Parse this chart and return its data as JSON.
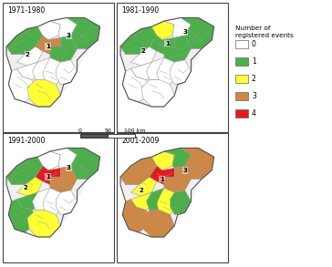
{
  "legend_title": "Number of\nregistered events",
  "legend_items": [
    {
      "value": "0",
      "color": "#ffffff"
    },
    {
      "value": "1",
      "color": "#4daf4a"
    },
    {
      "value": "2",
      "color": "#ffff33"
    },
    {
      "value": "3",
      "color": "#cc8844"
    },
    {
      "value": "4",
      "color": "#e41a1c"
    }
  ],
  "colors": {
    "0": "#ffffff",
    "1": "#4daf4a",
    "2": "#ffff33",
    "3": "#cc8844",
    "4": "#e41a1c",
    "edge": "#999999",
    "outer_edge": "#555555"
  },
  "panel_titles": [
    "1971-1980",
    "1981-1990",
    "1991-2000",
    "2001-2009"
  ],
  "period_colors": [
    [
      "1",
      "1",
      "0",
      "0",
      "3",
      "1",
      "0",
      "0",
      "0",
      "0",
      "0",
      "0",
      "2",
      "1",
      "0",
      "0",
      "1",
      "0",
      "0",
      "0",
      "0",
      "0",
      "0",
      "2",
      "0",
      "0",
      "0",
      "0",
      "0",
      "0"
    ],
    [
      "1",
      "1",
      "0",
      "0",
      "1",
      "1",
      "0",
      "0",
      "0",
      "0",
      "0",
      "0",
      "2",
      "1",
      "0",
      "0",
      "0",
      "0",
      "0",
      "0",
      "0",
      "0",
      "0",
      "1",
      "0",
      "0",
      "0",
      "0",
      "0",
      "0"
    ],
    [
      "4",
      "1",
      "0",
      "0",
      "1",
      "3",
      "0",
      "0",
      "1",
      "0",
      "0",
      "0",
      "2",
      "3",
      "0",
      "0",
      "2",
      "0",
      "0",
      "0",
      "0",
      "2",
      "0",
      "0",
      "0",
      "2",
      "0",
      "1",
      "0",
      "0"
    ],
    [
      "4",
      "3",
      "0",
      "2",
      "2",
      "4",
      "0",
      "1",
      "1",
      "0",
      "0",
      "0",
      "2",
      "3",
      "0",
      "1",
      "2",
      "1",
      "0",
      "1",
      "0",
      "3",
      "1",
      "3",
      "0",
      "1",
      "0",
      "3",
      "2",
      "0"
    ]
  ]
}
